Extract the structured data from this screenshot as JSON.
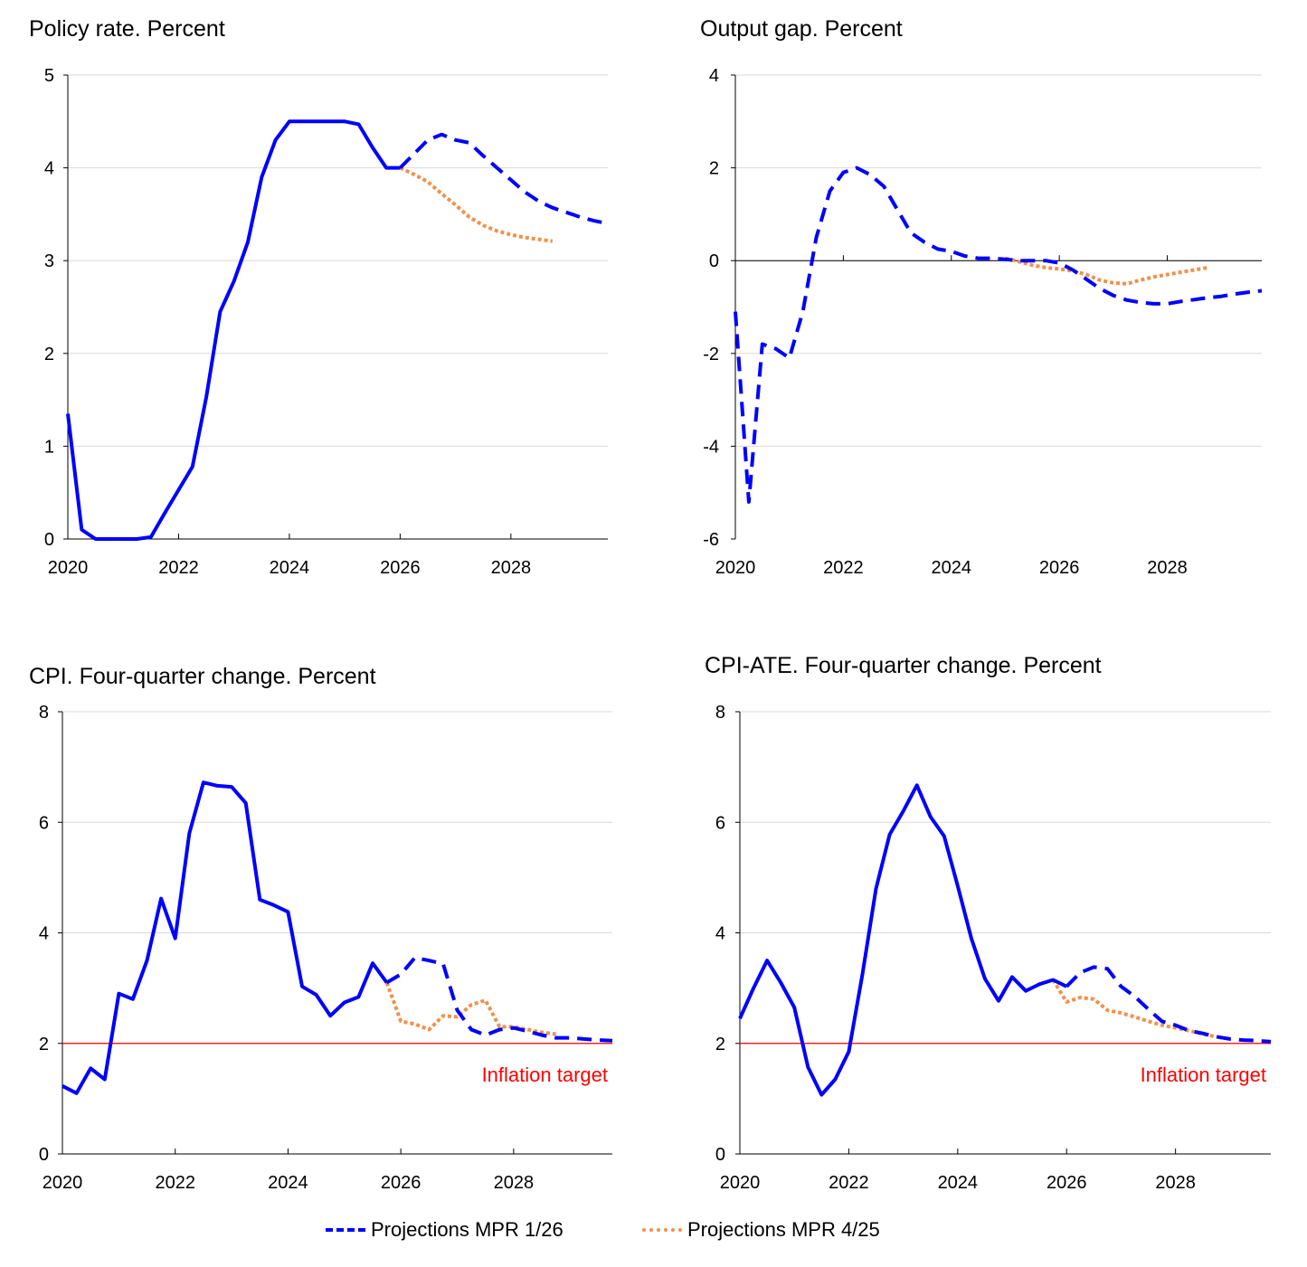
{
  "legend": {
    "items": [
      {
        "label": "Projections MPR 1/26",
        "color": "#0000FF",
        "style": "dashed"
      },
      {
        "label": "Projections MPR 4/25",
        "color": "#F0914B",
        "style": "dotted"
      }
    ]
  },
  "colors": {
    "history": "#0000FF",
    "mpr_1_26": "#0000FF",
    "mpr_4_25": "#F0914B",
    "target": "#FF0000",
    "grid": "#D9D9D9"
  },
  "chart_data": [
    {
      "type": "line",
      "title": "Policy rate. Percent",
      "ylim": [
        0,
        5
      ],
      "yticks": [
        0,
        1,
        2,
        3,
        4,
        5
      ],
      "xlim": [
        "2020Q1",
        "2029Q4"
      ],
      "xticks": [
        "2020",
        "2022",
        "2024",
        "2026",
        "2028"
      ],
      "grid": true,
      "series": [
        {
          "kind": "history",
          "start": "2020Q1",
          "values": [
            1.35,
            0.1,
            0,
            0,
            0,
            0,
            0.02,
            0.28,
            0.53,
            0.78,
            1.53,
            2.45,
            2.78,
            3.2,
            3.9,
            4.3,
            4.5,
            4.5,
            4.5,
            4.5,
            4.5,
            4.47,
            4.22,
            4.0,
            4.0
          ]
        },
        {
          "name": "Projections MPR 1/26",
          "kind": "mpr_1_26",
          "start": "2026Q1",
          "values": [
            4.0,
            4.15,
            4.3,
            4.36,
            4.3,
            4.27,
            4.13,
            4.0,
            3.87,
            3.74,
            3.64,
            3.57,
            3.52,
            3.47,
            3.43,
            3.4
          ]
        },
        {
          "name": "Projections MPR 4/25",
          "kind": "mpr_4_25",
          "start": "2026Q1",
          "values": [
            4.0,
            3.93,
            3.85,
            3.72,
            3.6,
            3.47,
            3.38,
            3.32,
            3.28,
            3.25,
            3.23,
            3.21
          ]
        }
      ]
    },
    {
      "type": "line",
      "title": "Output gap. Percent",
      "ylim": [
        -6,
        4
      ],
      "yticks": [
        -6,
        -4,
        -2,
        0,
        2,
        4
      ],
      "xlim": [
        "2020Q1",
        "2029Q4"
      ],
      "xticks": [
        "2020",
        "2022",
        "2024",
        "2026",
        "2028"
      ],
      "grid": true,
      "series": [
        {
          "name": "Projections MPR 1/26",
          "kind": "mpr_1_26",
          "start": "2020Q1",
          "values": [
            -1.1,
            -5.2,
            -1.8,
            -1.9,
            -2.1,
            -1.1,
            0.5,
            1.5,
            1.9,
            2.0,
            1.85,
            1.6,
            1.1,
            0.6,
            0.4,
            0.25,
            0.2,
            0.1,
            0.05,
            0.05,
            0.03,
            0.0,
            0.0,
            0.0,
            -0.05,
            -0.2,
            -0.4,
            -0.6,
            -0.75,
            -0.85,
            -0.9,
            -0.93,
            -0.93,
            -0.88,
            -0.84,
            -0.8,
            -0.77,
            -0.72,
            -0.68,
            -0.65
          ]
        },
        {
          "name": "Projections MPR 4/25",
          "kind": "mpr_4_25",
          "start": "2025Q1",
          "values": [
            0.05,
            -0.02,
            -0.1,
            -0.15,
            -0.18,
            -0.22,
            -0.3,
            -0.42,
            -0.48,
            -0.5,
            -0.42,
            -0.35,
            -0.3,
            -0.25,
            -0.2,
            -0.15
          ]
        }
      ]
    },
    {
      "type": "line",
      "title": "CPI. Four-quarter change. Percent",
      "ylim": [
        0,
        8
      ],
      "yticks": [
        0,
        2,
        4,
        6,
        8
      ],
      "xlim": [
        "2020Q1",
        "2029Q4"
      ],
      "xticks": [
        "2020",
        "2022",
        "2024",
        "2026",
        "2028"
      ],
      "grid": true,
      "target": {
        "value": 2,
        "label": "Inflation target"
      },
      "series": [
        {
          "kind": "history",
          "start": "2020Q1",
          "values": [
            1.23,
            1.1,
            1.55,
            1.35,
            2.9,
            2.8,
            3.5,
            4.62,
            3.9,
            5.8,
            6.72,
            6.66,
            6.64,
            6.35,
            4.6,
            4.5,
            4.38,
            3.03,
            2.88,
            2.5,
            2.74,
            2.84,
            3.45,
            3.1
          ]
        },
        {
          "name": "Projections MPR 1/26",
          "kind": "mpr_1_26",
          "start": "2025Q4",
          "values": [
            3.1,
            3.25,
            3.55,
            3.5,
            3.44,
            2.6,
            2.25,
            2.15,
            2.25,
            2.28,
            2.22,
            2.15,
            2.1,
            2.1,
            2.08,
            2.06,
            2.05
          ]
        },
        {
          "name": "Projections MPR 4/25",
          "kind": "mpr_4_25",
          "start": "2025Q4",
          "values": [
            3.1,
            2.4,
            2.35,
            2.25,
            2.5,
            2.48,
            2.7,
            2.78,
            2.3,
            2.3,
            2.25,
            2.2,
            2.17
          ]
        }
      ]
    },
    {
      "type": "line",
      "title": "CPI-ATE. Four-quarter change. Percent",
      "ylim": [
        0,
        8
      ],
      "yticks": [
        0,
        2,
        4,
        6,
        8
      ],
      "xlim": [
        "2020Q1",
        "2029Q4"
      ],
      "xticks": [
        "2020",
        "2022",
        "2024",
        "2026",
        "2028"
      ],
      "grid": true,
      "target": {
        "value": 2,
        "label": "Inflation target"
      },
      "series": [
        {
          "kind": "history",
          "start": "2020Q1",
          "values": [
            2.45,
            3.0,
            3.5,
            3.1,
            2.65,
            1.57,
            1.07,
            1.35,
            1.85,
            3.25,
            4.8,
            5.78,
            6.2,
            6.67,
            6.1,
            5.75,
            4.85,
            3.9,
            3.17,
            2.77,
            3.2,
            2.95,
            3.07,
            3.15,
            3.03
          ]
        },
        {
          "name": "Projections MPR 1/26",
          "kind": "mpr_1_26",
          "start": "2026Q1",
          "values": [
            3.03,
            3.28,
            3.38,
            3.35,
            3.03,
            2.85,
            2.62,
            2.4,
            2.33,
            2.23,
            2.18,
            2.12,
            2.08,
            2.06,
            2.05,
            2.03
          ]
        },
        {
          "name": "Projections MPR 4/25",
          "kind": "mpr_4_25",
          "start": "2025Q4",
          "values": [
            3.15,
            2.75,
            2.83,
            2.8,
            2.6,
            2.55,
            2.48,
            2.4,
            2.33,
            2.28,
            2.23,
            2.17,
            2.12
          ]
        }
      ]
    }
  ]
}
